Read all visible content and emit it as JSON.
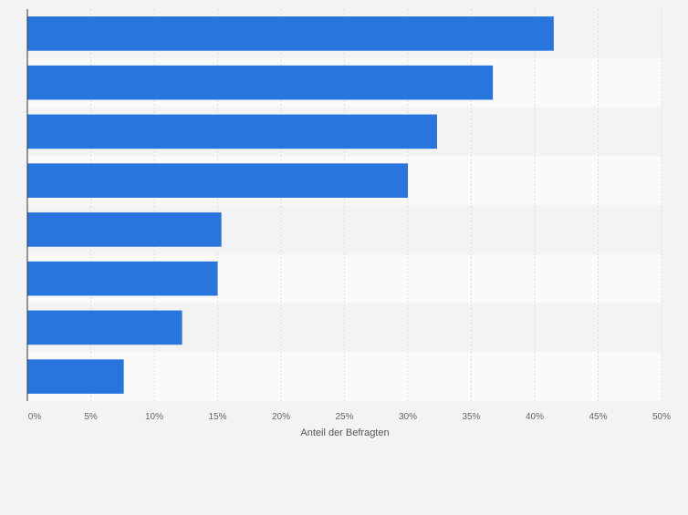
{
  "chart_data": {
    "type": "bar",
    "orientation": "horizontal",
    "title": "",
    "categories": [
      "",
      "",
      "",
      "",
      "",
      "",
      "",
      ""
    ],
    "values": [
      41.5,
      36.7,
      32.3,
      30.0,
      15.3,
      15.0,
      12.2,
      7.6
    ],
    "xlabel": "Anteil der Befragten",
    "ylabel": "",
    "xlim": [
      0,
      50
    ],
    "x_ticks": [
      "0%",
      "5%",
      "10%",
      "15%",
      "20%",
      "25%",
      "30%",
      "35%",
      "40%",
      "45%",
      "50%"
    ],
    "grid": true,
    "legend": "none",
    "colors": {
      "bar": "#2876dd",
      "background": "#f3f3f3",
      "band_light": "#fafafa",
      "band_dark": "#f3f3f3",
      "grid": "#dedede",
      "axis": "#333333",
      "tick_text": "#666666"
    }
  }
}
